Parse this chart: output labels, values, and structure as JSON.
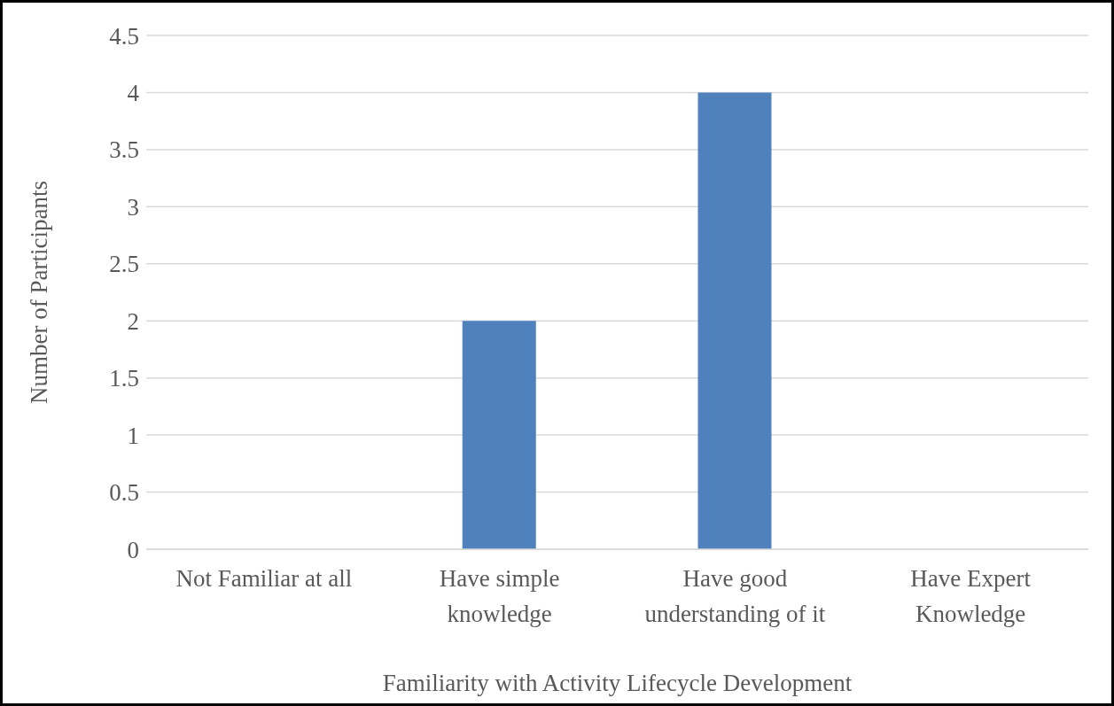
{
  "chart_data": {
    "type": "bar",
    "categories": [
      "Not Familiar at all",
      "Have simple knowledge",
      "Have good understanding of it",
      "Have Expert Knowledge"
    ],
    "values": [
      0,
      2,
      4,
      0
    ],
    "color": "#4f81bd",
    "xlabel": "Familiarity with Activity Lifecycle Development",
    "ylabel": "Number of Participants",
    "ylim": [
      0,
      4.5
    ],
    "yticks": [
      0,
      0.5,
      1,
      1.5,
      2,
      2.5,
      3,
      3.5,
      4,
      4.5
    ],
    "grid": "y",
    "legend": false
  }
}
